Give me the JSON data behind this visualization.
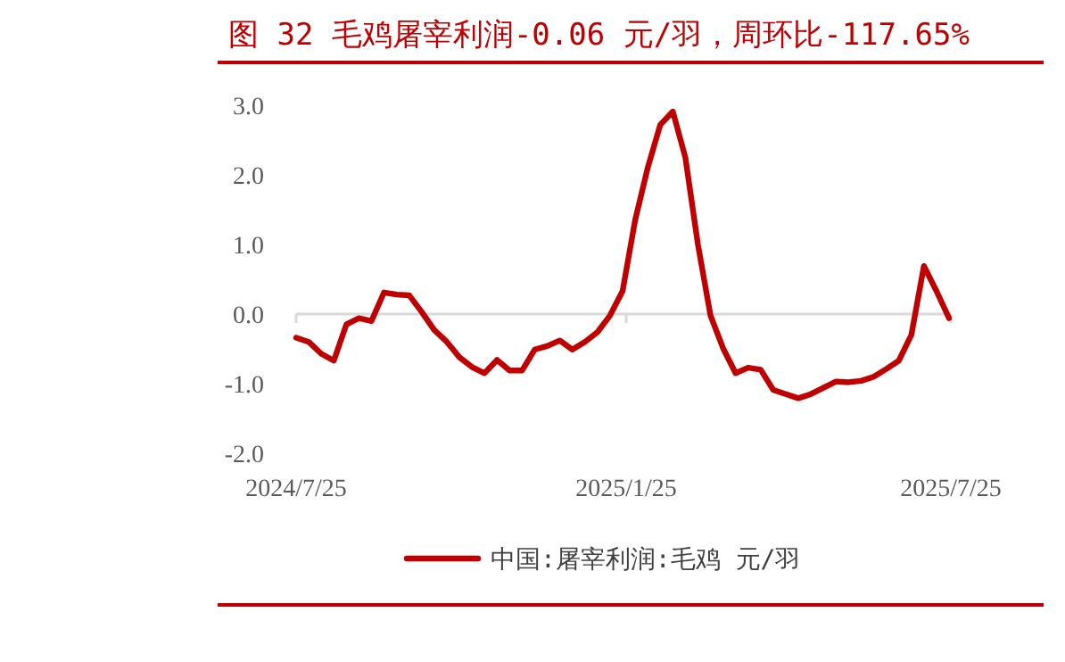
{
  "chart_data": {
    "type": "line",
    "title": "图 32 毛鸡屠宰利润-0.06 元/羽，周环比-117.65%",
    "x": [
      "2024-07-25",
      "2024-08-01",
      "2024-08-08",
      "2024-08-15",
      "2024-08-22",
      "2024-08-29",
      "2024-09-05",
      "2024-09-12",
      "2024-09-19",
      "2024-09-26",
      "2024-10-03",
      "2024-10-10",
      "2024-10-17",
      "2024-10-24",
      "2024-10-31",
      "2024-11-07",
      "2024-11-14",
      "2024-11-21",
      "2024-11-28",
      "2024-12-05",
      "2024-12-12",
      "2024-12-19",
      "2024-12-26",
      "2025-01-02",
      "2025-01-09",
      "2025-01-16",
      "2025-01-23",
      "2025-01-30",
      "2025-02-06",
      "2025-02-13",
      "2025-02-20",
      "2025-02-27",
      "2025-03-06",
      "2025-03-13",
      "2025-03-20",
      "2025-03-27",
      "2025-04-03",
      "2025-04-10",
      "2025-04-17",
      "2025-04-24",
      "2025-05-01",
      "2025-05-08",
      "2025-05-15",
      "2025-05-22",
      "2025-05-29",
      "2025-06-05",
      "2025-06-12",
      "2025-06-19",
      "2025-06-26",
      "2025-07-03",
      "2025-07-10",
      "2025-07-17",
      "2025-07-24"
    ],
    "series": [
      {
        "name": "中国:屠宰利润:毛鸡 元/羽",
        "color": "#c00000",
        "values": [
          -0.34,
          -0.4,
          -0.57,
          -0.67,
          -0.15,
          -0.06,
          -0.1,
          0.31,
          0.28,
          0.27,
          0.03,
          -0.23,
          -0.4,
          -0.62,
          -0.76,
          -0.85,
          -0.66,
          -0.81,
          -0.81,
          -0.51,
          -0.46,
          -0.38,
          -0.51,
          -0.4,
          -0.26,
          -0.02,
          0.33,
          1.35,
          2.1,
          2.72,
          2.91,
          2.25,
          1.0,
          -0.02,
          -0.49,
          -0.85,
          -0.77,
          -0.8,
          -1.09,
          -1.15,
          -1.21,
          -1.15,
          -1.06,
          -0.97,
          -0.98,
          -0.96,
          -0.9,
          -0.79,
          -0.67,
          -0.3,
          0.69,
          0.33,
          -0.06
        ]
      }
    ],
    "xlim": [
      "2024-07-25",
      "2025-07-25"
    ],
    "xticks": [
      {
        "value": "2024-07-25",
        "label": "2024/7/25"
      },
      {
        "value": "2025-01-25",
        "label": "2025/1/25"
      },
      {
        "value": "2025-07-25",
        "label": "2025/7/25"
      }
    ],
    "ylim": [
      -2,
      3
    ],
    "yticks": [
      {
        "value": -2,
        "label": "-2.0"
      },
      {
        "value": -1,
        "label": "-1.0"
      },
      {
        "value": 0,
        "label": "0.0"
      },
      {
        "value": 1,
        "label": "1.0"
      },
      {
        "value": 2,
        "label": "2.0"
      },
      {
        "value": 3,
        "label": "3.0"
      }
    ],
    "ref_lines": [
      {
        "axis": "y",
        "value": 0,
        "color": "#d9d9d9"
      }
    ],
    "grid": false,
    "legend": "bottom",
    "marker": "none",
    "line_style": "solid"
  }
}
